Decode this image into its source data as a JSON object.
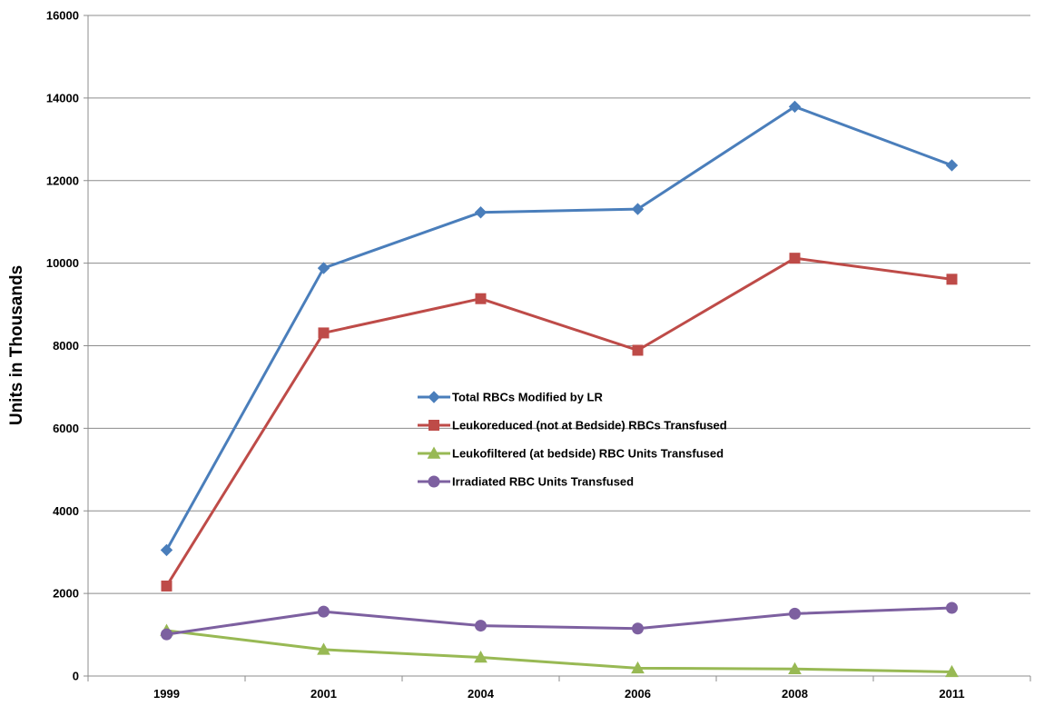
{
  "chart_data": {
    "type": "line",
    "title": "",
    "xlabel": "",
    "ylabel": "Units in Thousands",
    "categories": [
      "1999",
      "2001",
      "2004",
      "2006",
      "2008",
      "2011"
    ],
    "ylim": [
      0,
      16000
    ],
    "yticks": [
      "0",
      "2000",
      "4000",
      "6000",
      "8000",
      "10000",
      "12000",
      "14000",
      "16000"
    ],
    "grid": "horizontal",
    "legend_position": "center",
    "series": [
      {
        "name": "Total RBCs Modified by LR",
        "color": "#4A7EBB",
        "marker": "diamond",
        "values": [
          3050,
          9880,
          11230,
          11310,
          13790,
          12370
        ]
      },
      {
        "name": "Leukoreduced (not at Bedside) RBCs Transfused",
        "color": "#BE4B48",
        "marker": "square",
        "values": [
          2180,
          8310,
          9140,
          7890,
          10120,
          9610
        ]
      },
      {
        "name": "Leukofiltered (at bedside) RBC Units Transfused",
        "color": "#98B954",
        "marker": "triangle",
        "values": [
          1100,
          640,
          450,
          190,
          170,
          100
        ]
      },
      {
        "name": "Irradiated RBC Units Transfused",
        "color": "#7D60A0",
        "marker": "circle",
        "values": [
          1010,
          1560,
          1220,
          1150,
          1510,
          1650
        ]
      }
    ]
  }
}
